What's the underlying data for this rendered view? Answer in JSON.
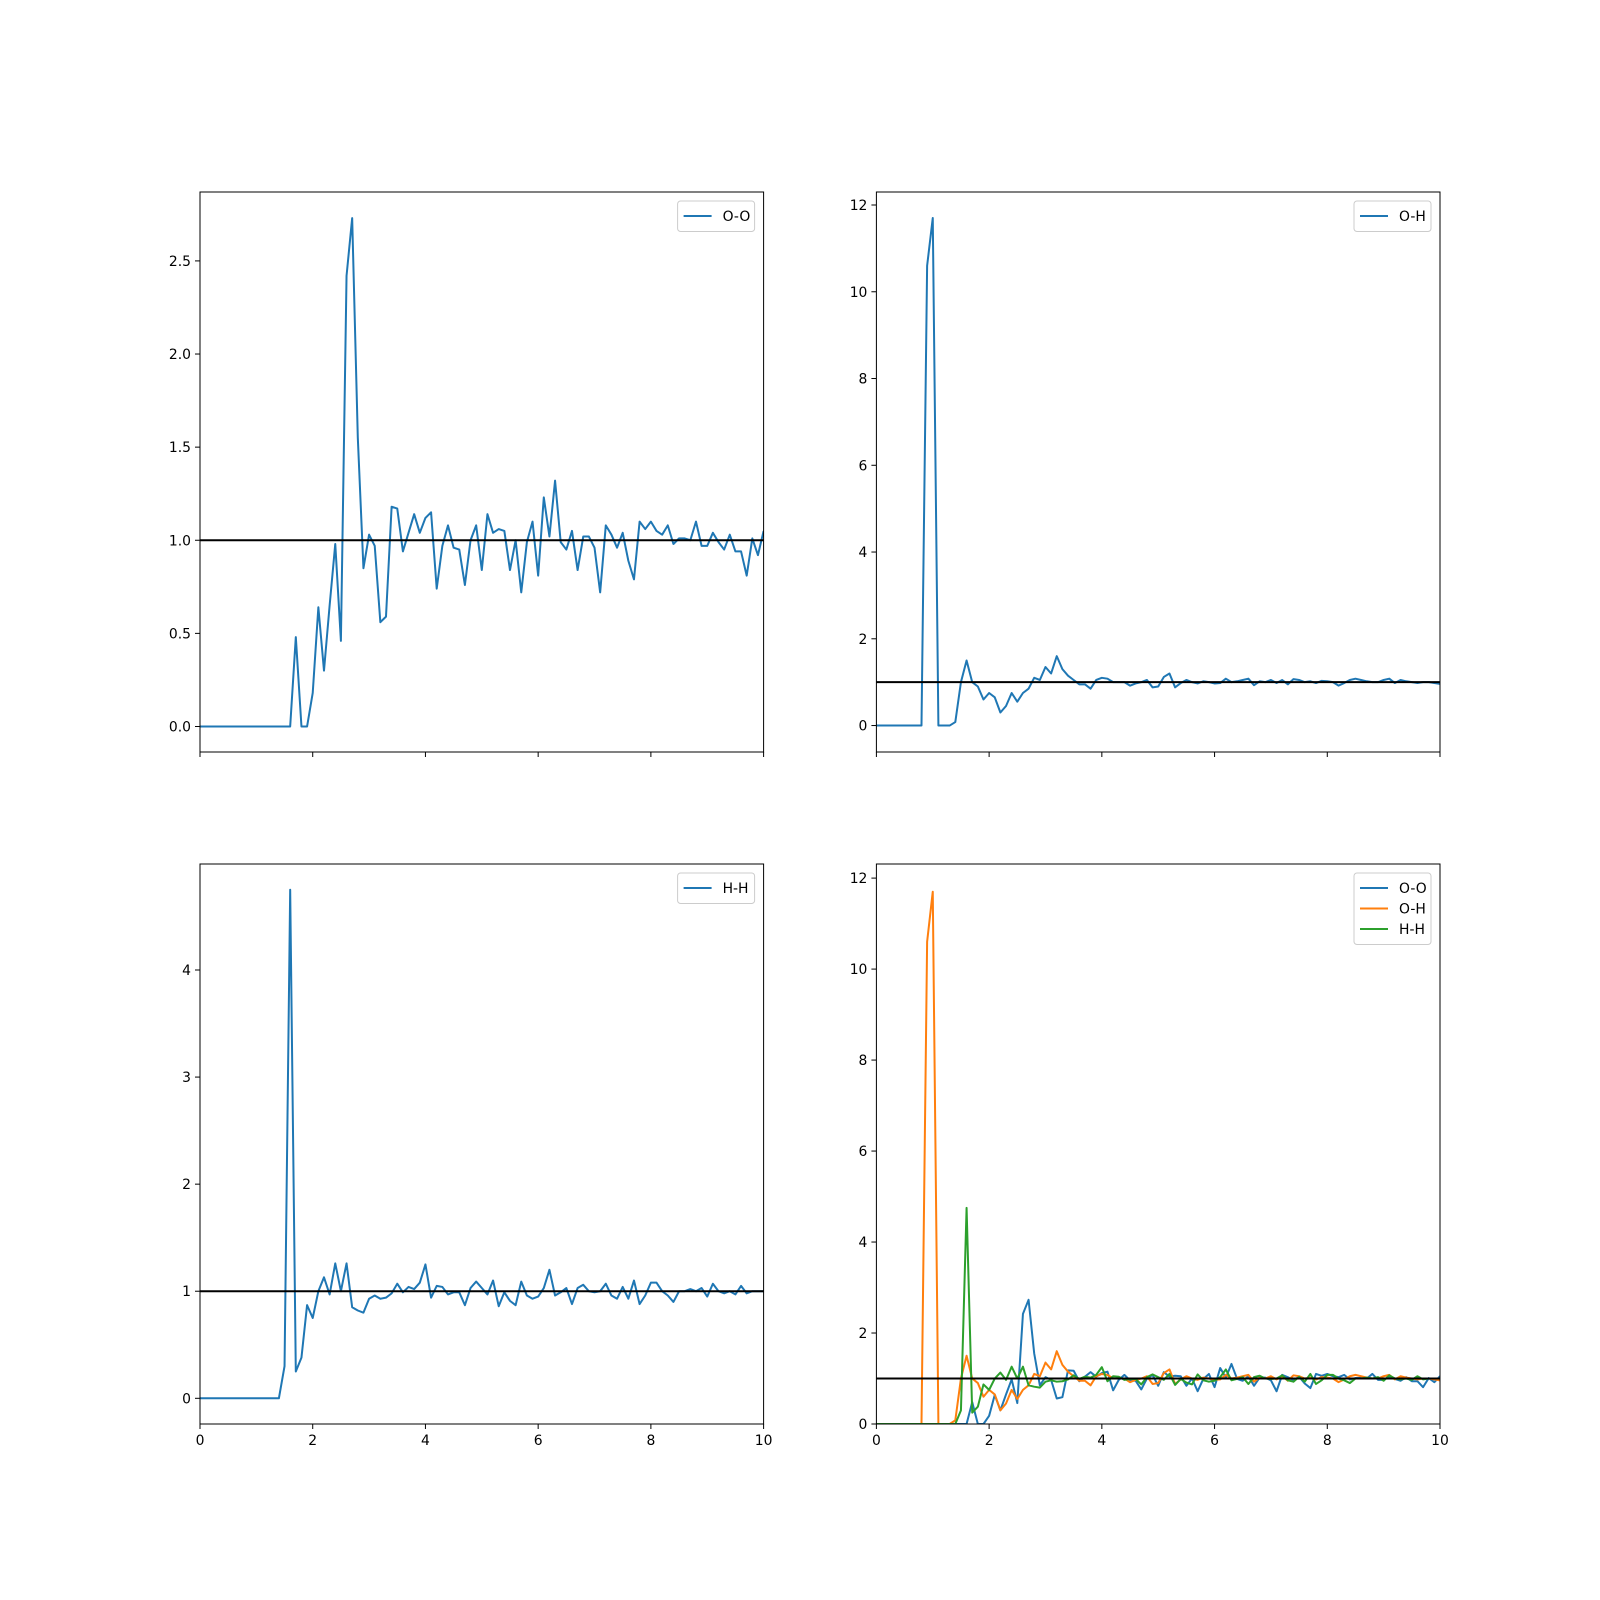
{
  "chart_data": [
    {
      "type": "line",
      "x": [
        0,
        0.1,
        0.2,
        0.3,
        0.4,
        0.5,
        0.6,
        0.7,
        0.8,
        0.9,
        1,
        1.1,
        1.2,
        1.3,
        1.4,
        1.5,
        1.6,
        1.7,
        1.8,
        1.9,
        2,
        2.1,
        2.2,
        2.3,
        2.4,
        2.5,
        2.6,
        2.7,
        2.8,
        2.9,
        3,
        3.1,
        3.2,
        3.3,
        3.4,
        3.5,
        3.6,
        3.7,
        3.8,
        3.9,
        4,
        4.1,
        4.2,
        4.3,
        4.4,
        4.5,
        4.6,
        4.7,
        4.8,
        4.9,
        5,
        5.1,
        5.2,
        5.3,
        5.4,
        5.5,
        5.6,
        5.7,
        5.8,
        5.9,
        6,
        6.1,
        6.2,
        6.3,
        6.4,
        6.5,
        6.6,
        6.7,
        6.8,
        6.9,
        7,
        7.1,
        7.2,
        7.3,
        7.4,
        7.5,
        7.6,
        7.7,
        7.8,
        7.9,
        8,
        8.1,
        8.2,
        8.3,
        8.4,
        8.5,
        8.6,
        8.7,
        8.8,
        8.9,
        9,
        9.1,
        9.2,
        9.3,
        9.4,
        9.5,
        9.6,
        9.7,
        9.8,
        9.9,
        10
      ],
      "series": [
        {
          "name": "O-O",
          "color": "#1f77b4",
          "values": [
            0,
            0,
            0,
            0,
            0,
            0,
            0,
            0,
            0,
            0,
            0,
            0,
            0,
            0,
            0,
            0,
            0,
            0.48,
            0,
            0,
            0.18,
            0.64,
            0.3,
            0.65,
            0.98,
            0.46,
            2.42,
            2.73,
            1.55,
            0.85,
            1.03,
            0.97,
            0.56,
            0.59,
            1.18,
            1.17,
            0.94,
            1.04,
            1.14,
            1.04,
            1.12,
            1.15,
            0.74,
            0.97,
            1.08,
            0.96,
            0.95,
            0.76,
            1.0,
            1.08,
            0.84,
            1.14,
            1.04,
            1.06,
            1.05,
            0.84,
            1.0,
            0.72,
            0.99,
            1.1,
            0.81,
            1.23,
            1.02,
            1.32,
            0.99,
            0.95,
            1.05,
            0.84,
            1.02,
            1.02,
            0.96,
            0.72,
            1.08,
            1.03,
            0.96,
            1.04,
            0.89,
            0.79,
            1.1,
            1.06,
            1.1,
            1.05,
            1.03,
            1.08,
            0.98,
            1.01,
            1.01,
            1.0,
            1.1,
            0.97,
            0.97,
            1.04,
            0.99,
            0.95,
            1.03,
            0.94,
            0.94,
            0.81,
            1.01,
            0.92,
            1.05
          ]
        }
      ],
      "xlim": [
        0,
        10
      ],
      "xticks": [
        0,
        2,
        4,
        6,
        8,
        10
      ],
      "xtick_labels": false,
      "ylim": [
        -0.137,
        2.87
      ],
      "yticks": [
        {
          "value": 0,
          "label": "0.0"
        },
        0.5,
        {
          "value": 1,
          "label": "1.0"
        },
        1.5,
        {
          "value": 2,
          "label": "2.0"
        },
        2.5
      ],
      "hline": 1,
      "legend": "upper right"
    },
    {
      "type": "line",
      "x": [
        0,
        0.1,
        0.2,
        0.3,
        0.4,
        0.5,
        0.6,
        0.7,
        0.8,
        0.9,
        1,
        1.1,
        1.2,
        1.3,
        1.4,
        1.5,
        1.6,
        1.7,
        1.8,
        1.9,
        2,
        2.1,
        2.2,
        2.3,
        2.4,
        2.5,
        2.6,
        2.7,
        2.8,
        2.9,
        3,
        3.1,
        3.2,
        3.3,
        3.4,
        3.5,
        3.6,
        3.7,
        3.8,
        3.9,
        4,
        4.1,
        4.2,
        4.3,
        4.4,
        4.5,
        4.6,
        4.7,
        4.8,
        4.9,
        5,
        5.1,
        5.2,
        5.3,
        5.4,
        5.5,
        5.6,
        5.7,
        5.8,
        5.9,
        6,
        6.1,
        6.2,
        6.3,
        6.4,
        6.5,
        6.6,
        6.7,
        6.8,
        6.9,
        7,
        7.1,
        7.2,
        7.3,
        7.4,
        7.5,
        7.6,
        7.7,
        7.8,
        7.9,
        8,
        8.1,
        8.2,
        8.3,
        8.4,
        8.5,
        8.6,
        8.7,
        8.8,
        8.9,
        9,
        9.1,
        9.2,
        9.3,
        9.4,
        9.5,
        9.6,
        9.7,
        9.8,
        9.9,
        10
      ],
      "series": [
        {
          "name": "O-H",
          "color": "#1f77b4",
          "values": [
            0,
            0,
            0,
            0,
            0,
            0,
            0,
            0,
            0,
            10.6,
            11.7,
            0,
            0,
            0,
            0.08,
            1.0,
            1.5,
            1.0,
            0.9,
            0.6,
            0.75,
            0.65,
            0.3,
            0.45,
            0.75,
            0.55,
            0.75,
            0.85,
            1.1,
            1.05,
            1.35,
            1.2,
            1.6,
            1.3,
            1.15,
            1.05,
            0.95,
            0.95,
            0.85,
            1.05,
            1.1,
            1.08,
            1.0,
            1.0,
            1.0,
            0.92,
            0.97,
            1.0,
            1.05,
            0.88,
            0.9,
            1.12,
            1.2,
            0.88,
            0.98,
            1.05,
            1.0,
            0.97,
            1.02,
            1.0,
            0.97,
            0.98,
            1.08,
            1.0,
            1.02,
            1.05,
            1.08,
            0.93,
            1.02,
            1.0,
            1.05,
            0.98,
            1.05,
            0.95,
            1.07,
            1.05,
            1.0,
            1.02,
            0.98,
            1.03,
            1.02,
            1.0,
            0.92,
            0.98,
            1.05,
            1.08,
            1.05,
            1.02,
            1.0,
            1.0,
            1.05,
            1.08,
            0.98,
            1.05,
            1.02,
            1.0,
            0.98,
            1.0,
            1.0,
            0.98,
            0.96
          ]
        }
      ],
      "xlim": [
        0,
        10
      ],
      "xticks": [
        0,
        2,
        4,
        6,
        8,
        10
      ],
      "xtick_labels": false,
      "ylim": [
        -0.61,
        12.3
      ],
      "yticks": [
        0,
        2,
        4,
        6,
        8,
        10,
        12
      ],
      "hline": 1,
      "legend": "upper right"
    },
    {
      "type": "line",
      "x": [
        0,
        0.1,
        0.2,
        0.3,
        0.4,
        0.5,
        0.6,
        0.7,
        0.8,
        0.9,
        1,
        1.1,
        1.2,
        1.3,
        1.4,
        1.5,
        1.6,
        1.7,
        1.8,
        1.9,
        2,
        2.1,
        2.2,
        2.3,
        2.4,
        2.5,
        2.6,
        2.7,
        2.8,
        2.9,
        3,
        3.1,
        3.2,
        3.3,
        3.4,
        3.5,
        3.6,
        3.7,
        3.8,
        3.9,
        4,
        4.1,
        4.2,
        4.3,
        4.4,
        4.5,
        4.6,
        4.7,
        4.8,
        4.9,
        5,
        5.1,
        5.2,
        5.3,
        5.4,
        5.5,
        5.6,
        5.7,
        5.8,
        5.9,
        6,
        6.1,
        6.2,
        6.3,
        6.4,
        6.5,
        6.6,
        6.7,
        6.8,
        6.9,
        7,
        7.1,
        7.2,
        7.3,
        7.4,
        7.5,
        7.6,
        7.7,
        7.8,
        7.9,
        8,
        8.1,
        8.2,
        8.3,
        8.4,
        8.5,
        8.6,
        8.7,
        8.8,
        8.9,
        9,
        9.1,
        9.2,
        9.3,
        9.4,
        9.5,
        9.6,
        9.7,
        9.8,
        9.9,
        10
      ],
      "series": [
        {
          "name": "H-H",
          "color": "#1f77b4",
          "values": [
            0,
            0,
            0,
            0,
            0,
            0,
            0,
            0,
            0,
            0,
            0,
            0,
            0,
            0,
            0,
            0.3,
            4.75,
            0.25,
            0.38,
            0.87,
            0.75,
            1.0,
            1.13,
            0.97,
            1.26,
            1.0,
            1.26,
            0.85,
            0.82,
            0.8,
            0.93,
            0.96,
            0.93,
            0.94,
            0.98,
            1.07,
            0.99,
            1.04,
            1.02,
            1.08,
            1.25,
            0.94,
            1.05,
            1.04,
            0.97,
            0.99,
            0.99,
            0.87,
            1.03,
            1.09,
            1.03,
            0.97,
            1.1,
            0.86,
            0.99,
            0.91,
            0.87,
            1.09,
            0.96,
            0.93,
            0.95,
            1.03,
            1.2,
            0.96,
            0.99,
            1.03,
            0.88,
            1.03,
            1.06,
            1.0,
            0.99,
            1.0,
            1.07,
            0.96,
            0.93,
            1.04,
            0.93,
            1.1,
            0.88,
            0.96,
            1.08,
            1.08,
            1.0,
            0.96,
            0.9,
            1.0,
            1.0,
            1.02,
            1.0,
            1.03,
            0.95,
            1.07,
            1.0,
            0.98,
            1.0,
            0.97,
            1.05,
            0.98,
            1.0,
            1.0,
            1.0
          ]
        }
      ],
      "xlim": [
        0,
        10
      ],
      "xticks": [
        0,
        2,
        4,
        6,
        8,
        10
      ],
      "xtick_labels": true,
      "ylim": [
        -0.24,
        4.99
      ],
      "yticks": [
        0,
        1,
        2,
        3,
        4
      ],
      "hline": 1,
      "legend": "upper right"
    },
    {
      "type": "line",
      "x": [
        0,
        0.1,
        0.2,
        0.3,
        0.4,
        0.5,
        0.6,
        0.7,
        0.8,
        0.9,
        1,
        1.1,
        1.2,
        1.3,
        1.4,
        1.5,
        1.6,
        1.7,
        1.8,
        1.9,
        2,
        2.1,
        2.2,
        2.3,
        2.4,
        2.5,
        2.6,
        2.7,
        2.8,
        2.9,
        3,
        3.1,
        3.2,
        3.3,
        3.4,
        3.5,
        3.6,
        3.7,
        3.8,
        3.9,
        4,
        4.1,
        4.2,
        4.3,
        4.4,
        4.5,
        4.6,
        4.7,
        4.8,
        4.9,
        5,
        5.1,
        5.2,
        5.3,
        5.4,
        5.5,
        5.6,
        5.7,
        5.8,
        5.9,
        6,
        6.1,
        6.2,
        6.3,
        6.4,
        6.5,
        6.6,
        6.7,
        6.8,
        6.9,
        7,
        7.1,
        7.2,
        7.3,
        7.4,
        7.5,
        7.6,
        7.7,
        7.8,
        7.9,
        8,
        8.1,
        8.2,
        8.3,
        8.4,
        8.5,
        8.6,
        8.7,
        8.8,
        8.9,
        9,
        9.1,
        9.2,
        9.3,
        9.4,
        9.5,
        9.6,
        9.7,
        9.8,
        9.9,
        10
      ],
      "series": [
        {
          "name": "O-O",
          "color": "#1f77b4",
          "values": [
            0,
            0,
            0,
            0,
            0,
            0,
            0,
            0,
            0,
            0,
            0,
            0,
            0,
            0,
            0,
            0,
            0,
            0.48,
            0,
            0,
            0.18,
            0.64,
            0.3,
            0.65,
            0.98,
            0.46,
            2.42,
            2.73,
            1.55,
            0.85,
            1.03,
            0.97,
            0.56,
            0.59,
            1.18,
            1.17,
            0.94,
            1.04,
            1.14,
            1.04,
            1.12,
            1.15,
            0.74,
            0.97,
            1.08,
            0.96,
            0.95,
            0.76,
            1.0,
            1.08,
            0.84,
            1.14,
            1.04,
            1.06,
            1.05,
            0.84,
            1.0,
            0.72,
            0.99,
            1.1,
            0.81,
            1.23,
            1.02,
            1.32,
            0.99,
            0.95,
            1.05,
            0.84,
            1.02,
            1.02,
            0.96,
            0.72,
            1.08,
            1.03,
            0.96,
            1.04,
            0.89,
            0.79,
            1.1,
            1.06,
            1.1,
            1.05,
            1.03,
            1.08,
            0.98,
            1.01,
            1.01,
            1.0,
            1.1,
            0.97,
            0.97,
            1.04,
            0.99,
            0.95,
            1.03,
            0.94,
            0.94,
            0.81,
            1.01,
            0.92,
            1.05
          ]
        },
        {
          "name": "O-H",
          "color": "#ff7f0e",
          "values": [
            0,
            0,
            0,
            0,
            0,
            0,
            0,
            0,
            0,
            10.6,
            11.7,
            0,
            0,
            0,
            0.08,
            1.0,
            1.5,
            1.0,
            0.9,
            0.6,
            0.75,
            0.65,
            0.3,
            0.45,
            0.75,
            0.55,
            0.75,
            0.85,
            1.1,
            1.05,
            1.35,
            1.2,
            1.6,
            1.3,
            1.15,
            1.05,
            0.95,
            0.95,
            0.85,
            1.05,
            1.1,
            1.08,
            1.0,
            1.0,
            1.0,
            0.92,
            0.97,
            1.0,
            1.05,
            0.88,
            0.9,
            1.12,
            1.2,
            0.88,
            0.98,
            1.05,
            1.0,
            0.97,
            1.02,
            1.0,
            0.97,
            0.98,
            1.08,
            1.0,
            1.02,
            1.05,
            1.08,
            0.93,
            1.02,
            1.0,
            1.05,
            0.98,
            1.05,
            0.95,
            1.07,
            1.05,
            1.0,
            1.02,
            0.98,
            1.03,
            1.02,
            1.0,
            0.92,
            0.98,
            1.05,
            1.08,
            1.05,
            1.02,
            1.0,
            1.0,
            1.05,
            1.08,
            0.98,
            1.05,
            1.02,
            1.0,
            0.98,
            1.0,
            1.0,
            0.98,
            0.96
          ]
        },
        {
          "name": "H-H",
          "color": "#2ca02c",
          "values": [
            0,
            0,
            0,
            0,
            0,
            0,
            0,
            0,
            0,
            0,
            0,
            0,
            0,
            0,
            0,
            0.3,
            4.75,
            0.25,
            0.38,
            0.87,
            0.75,
            1.0,
            1.13,
            0.97,
            1.26,
            1.0,
            1.26,
            0.85,
            0.82,
            0.8,
            0.93,
            0.96,
            0.93,
            0.94,
            0.98,
            1.07,
            0.99,
            1.04,
            1.02,
            1.08,
            1.25,
            0.94,
            1.05,
            1.04,
            0.97,
            0.99,
            0.99,
            0.87,
            1.03,
            1.09,
            1.03,
            0.97,
            1.1,
            0.86,
            0.99,
            0.91,
            0.87,
            1.09,
            0.96,
            0.93,
            0.95,
            1.03,
            1.2,
            0.96,
            0.99,
            1.03,
            0.88,
            1.03,
            1.06,
            1.0,
            0.99,
            1.0,
            1.07,
            0.96,
            0.93,
            1.04,
            0.93,
            1.1,
            0.88,
            0.96,
            1.08,
            1.08,
            1.0,
            0.96,
            0.9,
            1.0,
            1.0,
            1.02,
            1.0,
            1.03,
            0.95,
            1.07,
            1.0,
            0.98,
            1.0,
            0.97,
            1.05,
            0.98,
            1.0,
            1.0,
            1.0
          ]
        }
      ],
      "xlim": [
        0,
        10
      ],
      "xticks": [
        0,
        2,
        4,
        6,
        8,
        10
      ],
      "xtick_labels": true,
      "ylim": [
        0,
        12.31
      ],
      "yticks": [
        0,
        2,
        4,
        6,
        8,
        10,
        12
      ],
      "hline": 1,
      "legend": "upper right"
    }
  ]
}
